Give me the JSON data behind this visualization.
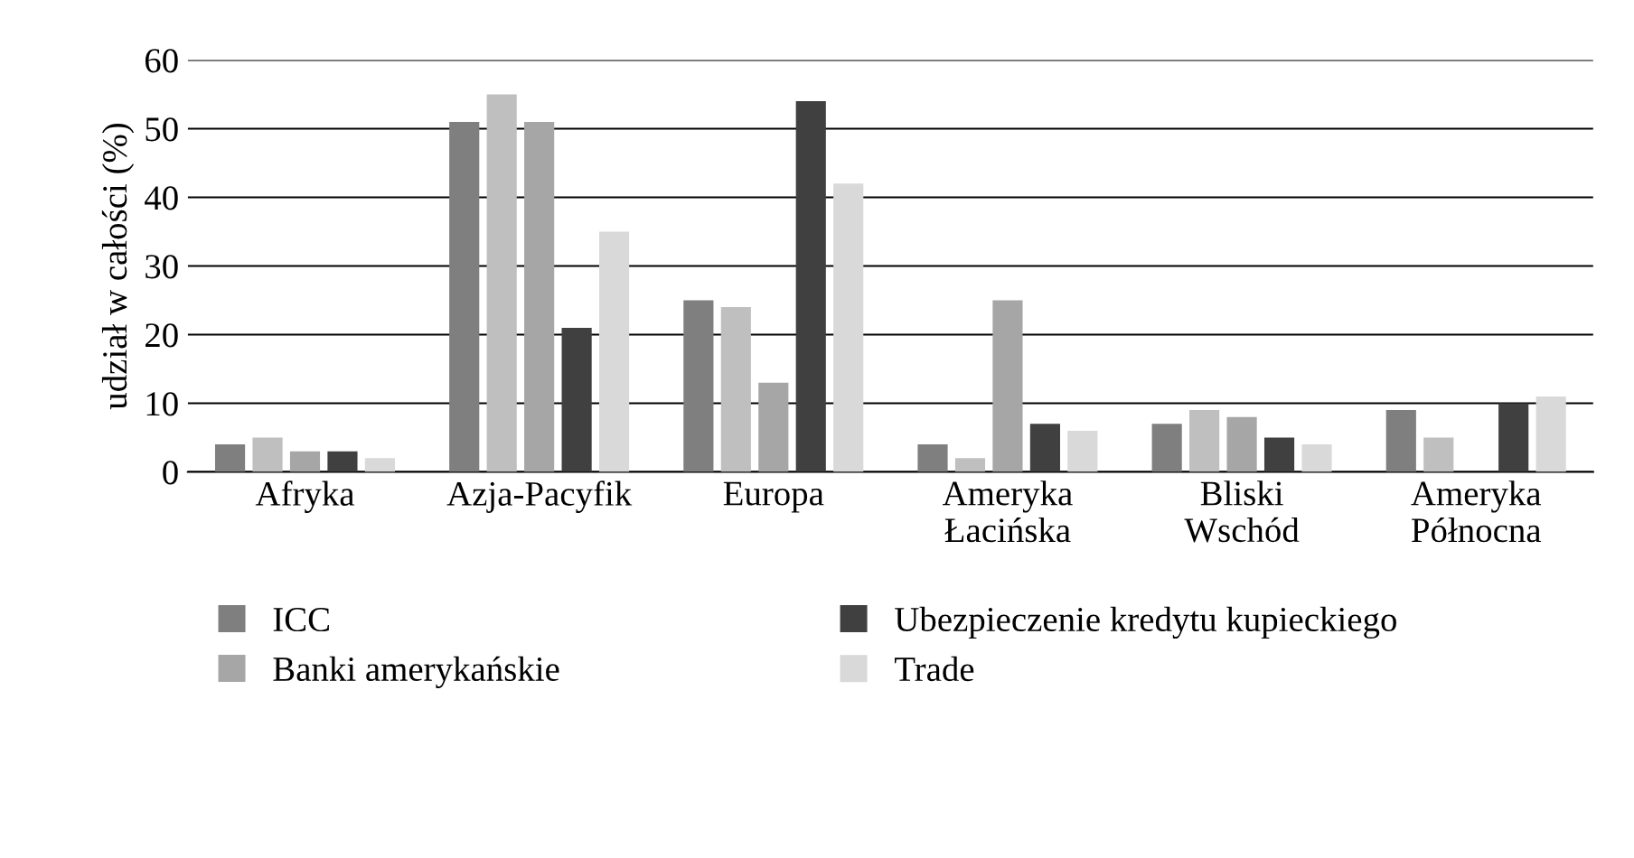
{
  "chart_data": {
    "type": "bar",
    "ylabel": "udział w całości (%)",
    "categories": [
      "Afryka",
      "Azja-Pacyfik",
      "Europa",
      "Ameryka\nŁacińska",
      "Bliski\nWschód",
      "Ameryka\nPółnocna"
    ],
    "series": [
      {
        "name": "ICC",
        "color": "#7f7f7f",
        "values": [
          4,
          51,
          25,
          4,
          7,
          9
        ]
      },
      {
        "color": "#bfbfbf",
        "values": [
          5,
          55,
          24,
          2,
          9,
          5
        ]
      },
      {
        "name": "Banki amerykańskie",
        "color": "#a6a6a6",
        "values": [
          3,
          51,
          13,
          25,
          8,
          null
        ]
      },
      {
        "name": "Ubezpieczenie kredytu kupieckiego",
        "color": "#404040",
        "values": [
          3,
          21,
          54,
          7,
          5,
          10
        ]
      },
      {
        "name": "Trade",
        "color": "#d9d9d9",
        "values": [
          2,
          35,
          42,
          6,
          4,
          11
        ]
      }
    ],
    "ylim": [
      0,
      60
    ],
    "yticks": [
      0,
      10,
      20,
      30,
      40,
      50,
      60
    ],
    "grid": "y",
    "legend": "bottom"
  }
}
